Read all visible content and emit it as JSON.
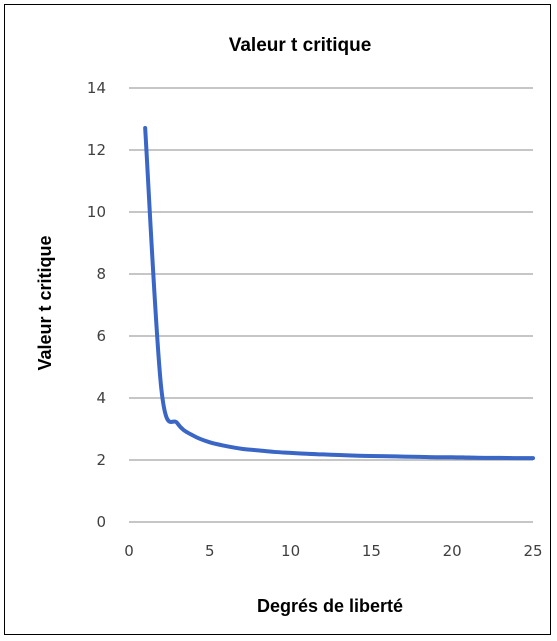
{
  "chart_data": {
    "type": "line",
    "title": "Valeur t critique",
    "xlabel": "Degrés de liberté",
    "ylabel": "Valeur t critique",
    "xlim": [
      0,
      25
    ],
    "ylim": [
      0,
      14
    ],
    "x_ticks": [
      0,
      5,
      10,
      15,
      20,
      25
    ],
    "y_ticks": [
      0,
      2,
      4,
      6,
      8,
      10,
      12,
      14
    ],
    "grid": "horizontal",
    "legend": "none",
    "colors": {
      "series": "#3a66c5",
      "grid": "#8c8c8c",
      "text": "#404040"
    },
    "series": [
      {
        "x": [
          1,
          2,
          3,
          4,
          5,
          6,
          7,
          8,
          9,
          10,
          11,
          12,
          13,
          14,
          15,
          16,
          17,
          18,
          19,
          20,
          21,
          22,
          23,
          24,
          25
        ],
        "y": [
          12.71,
          4.3,
          3.18,
          2.78,
          2.57,
          2.45,
          2.36,
          2.31,
          2.26,
          2.23,
          2.2,
          2.18,
          2.16,
          2.14,
          2.13,
          2.12,
          2.11,
          2.1,
          2.09,
          2.09,
          2.08,
          2.07,
          2.07,
          2.06,
          2.06
        ]
      }
    ]
  }
}
